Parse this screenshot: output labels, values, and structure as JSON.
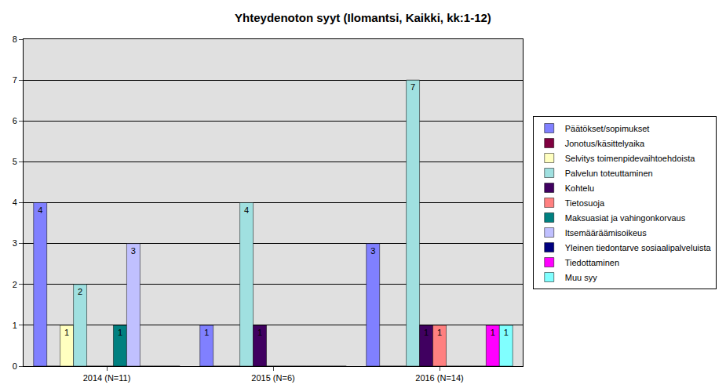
{
  "chart_data": {
    "type": "bar",
    "title": "Yhteydenoton syyt (Ilomantsi, Kaikki, kk:1-12)",
    "categories": [
      "2014 (N=11)",
      "2015 (N=6)",
      "2016 (N=14)"
    ],
    "series": [
      {
        "name": "Päätökset/sopimukset",
        "color": "#8080ff",
        "values": [
          4,
          1,
          3
        ]
      },
      {
        "name": "Jonotus/käsittelyaika",
        "color": "#800040",
        "values": [
          0,
          0,
          0
        ]
      },
      {
        "name": "Selvitys toimenpidevaihtoehdoista",
        "color": "#ffffc0",
        "values": [
          1,
          0,
          0
        ]
      },
      {
        "name": "Palvelun toteuttaminen",
        "color": "#a0e0e0",
        "values": [
          2,
          4,
          7
        ]
      },
      {
        "name": "Kohtelu",
        "color": "#400060",
        "values": [
          0,
          1,
          1
        ]
      },
      {
        "name": "Tietosuoja",
        "color": "#ff8080",
        "values": [
          0,
          0,
          1
        ]
      },
      {
        "name": "Maksuasiat ja vahingonkorvaus",
        "color": "#008080",
        "values": [
          1,
          0,
          0
        ]
      },
      {
        "name": "Itsemääräämisoikeus",
        "color": "#c0c0ff",
        "values": [
          3,
          0,
          0
        ]
      },
      {
        "name": "Yleinen tiedontarve sosiaalipalveluista",
        "color": "#000080",
        "values": [
          0,
          0,
          0
        ]
      },
      {
        "name": "Tiedottaminen",
        "color": "#ff00ff",
        "values": [
          0,
          0,
          1
        ]
      },
      {
        "name": "Muu syy",
        "color": "#80ffff",
        "values": [
          0,
          0,
          1
        ]
      }
    ],
    "ylim": [
      0,
      8
    ],
    "yticks": [
      0,
      1,
      2,
      3,
      4,
      5,
      6,
      7,
      8
    ],
    "grid": true,
    "legend": "right",
    "data_labels": true
  }
}
